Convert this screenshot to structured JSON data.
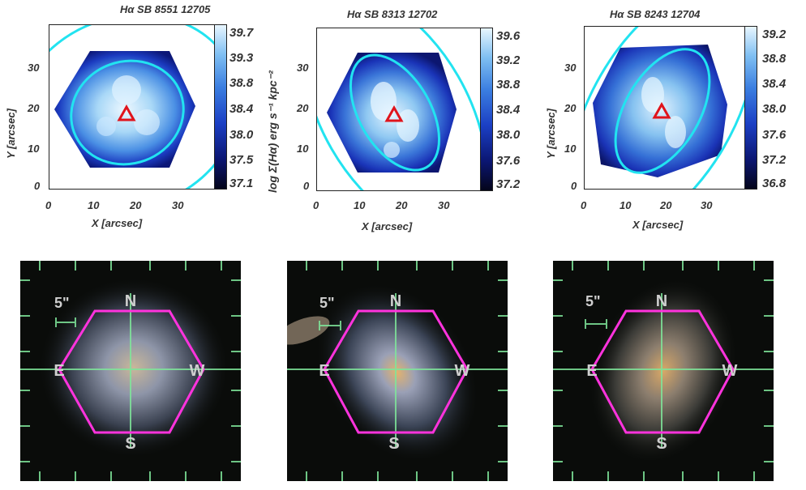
{
  "panels": [
    {
      "title": "Hα SB 8551 12705",
      "xlabel": "X [arcsec]",
      "ylabel": "Y [arcsec]",
      "xticks": [
        "0",
        "10",
        "20",
        "30"
      ],
      "yticks": [
        "30",
        "20",
        "10",
        "0"
      ],
      "colorbar_ticks": [
        "39.7",
        "39.3",
        "38.8",
        "38.4",
        "38.0",
        "37.5",
        "37.1"
      ],
      "colorbar_label": "log Σ(Hα) erg s⁻¹ kpc⁻²"
    },
    {
      "title": "Hα SB 8313 12702",
      "xlabel": "X [arcsec]",
      "xticks": [
        "0",
        "10",
        "20",
        "30"
      ],
      "yticks": [
        "30",
        "20",
        "10",
        "0"
      ],
      "colorbar_ticks": [
        "39.6",
        "39.2",
        "38.8",
        "38.4",
        "38.0",
        "37.6",
        "37.2"
      ]
    },
    {
      "title": "Hα SB 8243 12704",
      "xlabel": "X [arcsec]",
      "ylabel": "Y [arcsec]",
      "xticks": [
        "0",
        "10",
        "20",
        "30"
      ],
      "yticks": [
        "30",
        "20",
        "10",
        "0"
      ],
      "colorbar_ticks": [
        "39.2",
        "38.8",
        "38.4",
        "38.0",
        "37.6",
        "37.2",
        "36.8"
      ]
    }
  ],
  "images": [
    {
      "scale_label": "5\"",
      "north": "N",
      "south": "S",
      "east": "E",
      "west": "W"
    },
    {
      "scale_label": "5\"",
      "north": "N",
      "south": "S",
      "east": "E",
      "west": "W"
    },
    {
      "scale_label": "5\"",
      "north": "N",
      "south": "S",
      "east": "E",
      "west": "W"
    }
  ],
  "colors": {
    "ellipse": "#22e3f0",
    "marker": "#e0141c",
    "hexagon": "#ff33dd",
    "crosshair": "#7fe69a"
  }
}
